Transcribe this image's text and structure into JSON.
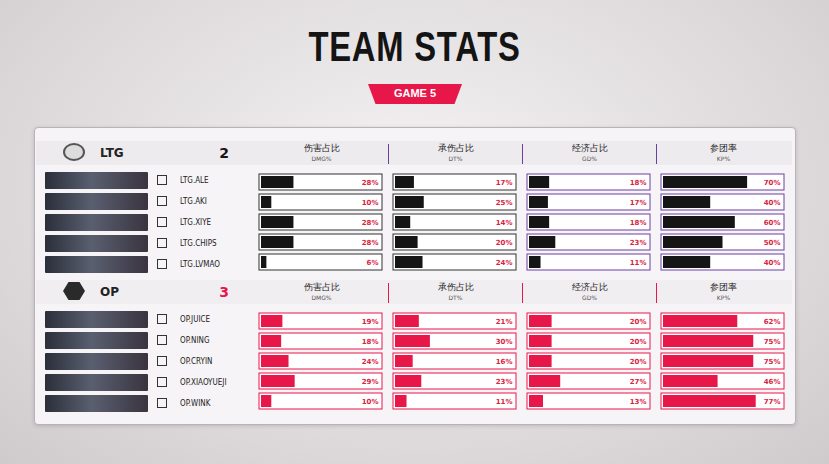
{
  "title": "TEAM STATS",
  "subtitle": "GAME 5",
  "chart_data": {
    "type": "bar",
    "orientation": "horizontal",
    "data_labels": true,
    "tick_labels": false,
    "xlim": [
      0,
      100
    ],
    "metrics": [
      {
        "label": "伤害占比",
        "sublabel": "DMG%"
      },
      {
        "label": "承伤占比",
        "sublabel": "DT%"
      },
      {
        "label": "经济占比",
        "sublabel": "GD%"
      },
      {
        "label": "参团率",
        "sublabel": "KP%"
      }
    ],
    "teams": [
      {
        "name": "LTG",
        "score": 2,
        "color": "#151515",
        "players": [
          {
            "name": "LTG.ALE",
            "values": [
              28,
              17,
              18,
              70
            ],
            "value_labels": [
              "28%",
              "17%",
              "18%",
              "70%"
            ]
          },
          {
            "name": "LTG.AKI",
            "values": [
              10,
              25,
              17,
              40
            ],
            "value_labels": [
              "10%",
              "25%",
              "17%",
              "40%"
            ]
          },
          {
            "name": "LTG.XIYE",
            "values": [
              28,
              14,
              18,
              60
            ],
            "value_labels": [
              "28%",
              "14%",
              "18%",
              "60%"
            ]
          },
          {
            "name": "LTG.CHIPS",
            "values": [
              28,
              20,
              23,
              50
            ],
            "value_labels": [
              "28%",
              "20%",
              "23%",
              "50%"
            ]
          },
          {
            "name": "LTG.LVMAO",
            "values": [
              6,
              24,
              11,
              40
            ],
            "value_labels": [
              "6%",
              "24%",
              "11%",
              "40%"
            ]
          }
        ]
      },
      {
        "name": "OP",
        "score": 3,
        "color": "#e8174a",
        "players": [
          {
            "name": "OP.JUICE",
            "values": [
              19,
              21,
              20,
              62
            ],
            "value_labels": [
              "19%",
              "21%",
              "20%",
              "62%"
            ]
          },
          {
            "name": "OP.NING",
            "values": [
              18,
              30,
              20,
              75
            ],
            "value_labels": [
              "18%",
              "30%",
              "20%",
              "75%"
            ]
          },
          {
            "name": "OP.CRYIN",
            "values": [
              24,
              16,
              20,
              75
            ],
            "value_labels": [
              "24%",
              "16%",
              "20%",
              "75%"
            ]
          },
          {
            "name": "OP.XIAOYUEJI",
            "values": [
              29,
              23,
              27,
              46
            ],
            "value_labels": [
              "29%",
              "23%",
              "27%",
              "46%"
            ]
          },
          {
            "name": "OP.WINK",
            "values": [
              10,
              11,
              13,
              77
            ],
            "value_labels": [
              "10%",
              "11%",
              "13%",
              "77%"
            ]
          }
        ]
      }
    ]
  }
}
